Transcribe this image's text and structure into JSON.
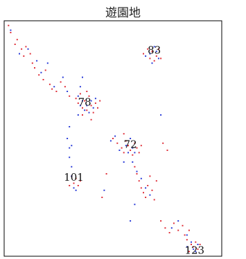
{
  "chart_data": {
    "type": "scatter",
    "title": "遊園地",
    "xlabel": "",
    "ylabel": "",
    "xlim": [
      0,
      100
    ],
    "ylim": [
      0,
      100
    ],
    "grid": false,
    "legend": "none",
    "colors": {
      "series_a": "#e0303a",
      "series_b": "#2a3cd8",
      "frame": "#000000"
    },
    "annotations": [
      {
        "text": "83",
        "x": 69.0,
        "y": 86.0
      },
      {
        "text": "78",
        "x": 37.0,
        "y": 64.0
      },
      {
        "text": "72",
        "x": 58.0,
        "y": 46.0
      },
      {
        "text": "101",
        "x": 32.0,
        "y": 32.0
      },
      {
        "text": "123",
        "x": 87.5,
        "y": 1.0
      }
    ],
    "series": [
      {
        "points": [
          [
            2,
            98
          ],
          [
            3,
            95
          ],
          [
            5,
            90
          ],
          [
            6,
            92
          ],
          [
            8,
            88
          ],
          [
            9,
            85
          ],
          [
            10,
            89
          ],
          [
            12,
            86
          ],
          [
            13,
            82
          ],
          [
            14,
            80
          ],
          [
            16,
            77
          ],
          [
            18,
            75
          ],
          [
            19,
            79
          ],
          [
            21,
            73
          ],
          [
            22,
            71
          ],
          [
            24,
            70
          ],
          [
            26,
            74
          ],
          [
            28,
            72
          ],
          [
            30,
            68
          ],
          [
            33,
            67
          ],
          [
            34,
            65
          ],
          [
            35,
            69
          ],
          [
            36,
            63
          ],
          [
            37,
            66
          ],
          [
            38,
            62
          ],
          [
            39,
            68
          ],
          [
            40,
            64
          ],
          [
            41,
            61
          ],
          [
            42,
            65
          ],
          [
            43,
            63
          ],
          [
            36,
            60
          ],
          [
            38,
            70
          ],
          [
            44,
            66
          ],
          [
            40,
            58
          ],
          [
            64,
            86
          ],
          [
            66,
            88
          ],
          [
            67,
            84
          ],
          [
            68,
            87
          ],
          [
            69,
            83
          ],
          [
            70,
            85
          ],
          [
            71,
            88
          ],
          [
            72,
            84
          ],
          [
            50,
            50
          ],
          [
            52,
            48
          ],
          [
            54,
            46
          ],
          [
            55,
            44
          ],
          [
            56,
            49
          ],
          [
            57,
            47
          ],
          [
            58,
            45
          ],
          [
            59,
            43
          ],
          [
            60,
            48
          ],
          [
            61,
            46
          ],
          [
            62,
            44
          ],
          [
            63,
            47
          ],
          [
            55,
            52
          ],
          [
            60,
            38
          ],
          [
            61,
            35
          ],
          [
            62,
            32
          ],
          [
            63,
            29
          ],
          [
            64,
            27
          ],
          [
            65,
            25
          ],
          [
            66,
            30
          ],
          [
            67,
            34
          ],
          [
            68,
            28
          ],
          [
            69,
            24
          ],
          [
            70,
            32
          ],
          [
            31,
            34
          ],
          [
            32,
            31
          ],
          [
            33,
            33
          ],
          [
            34,
            30
          ],
          [
            35,
            32
          ],
          [
            30,
            30
          ],
          [
            72,
            15
          ],
          [
            74,
            12
          ],
          [
            76,
            10
          ],
          [
            78,
            14
          ],
          [
            80,
            11
          ],
          [
            82,
            13
          ],
          [
            83,
            9
          ],
          [
            84,
            7
          ],
          [
            85,
            11
          ],
          [
            86,
            5
          ],
          [
            87,
            4
          ],
          [
            88,
            6
          ],
          [
            89,
            3
          ],
          [
            90,
            5
          ],
          [
            85,
            2
          ],
          [
            73,
            48
          ],
          [
            75,
            45
          ],
          [
            47,
            35
          ],
          [
            45,
            25
          ]
        ]
      },
      {
        "points": [
          [
            3,
            96
          ],
          [
            7,
            86
          ],
          [
            11,
            88
          ],
          [
            15,
            83
          ],
          [
            17,
            78
          ],
          [
            20,
            82
          ],
          [
            23,
            72
          ],
          [
            27,
            76
          ],
          [
            29,
            70
          ],
          [
            34,
            68
          ],
          [
            35,
            64
          ],
          [
            36,
            66
          ],
          [
            37,
            62
          ],
          [
            38,
            64
          ],
          [
            39,
            61
          ],
          [
            40,
            66
          ],
          [
            41,
            63
          ],
          [
            34,
            60
          ],
          [
            42,
            67
          ],
          [
            35,
            72
          ],
          [
            65,
            85
          ],
          [
            67,
            86
          ],
          [
            68,
            82
          ],
          [
            70,
            87
          ],
          [
            71,
            84
          ],
          [
            69,
            89
          ],
          [
            49,
            49
          ],
          [
            51,
            51
          ],
          [
            53,
            45
          ],
          [
            56,
            47
          ],
          [
            57,
            44
          ],
          [
            59,
            46
          ],
          [
            60,
            44
          ],
          [
            58,
            50
          ],
          [
            29,
            50
          ],
          [
            30,
            46
          ],
          [
            30,
            42
          ],
          [
            31,
            38
          ],
          [
            31,
            34
          ],
          [
            32,
            29
          ],
          [
            33,
            28
          ],
          [
            30,
            55
          ],
          [
            31,
            47
          ],
          [
            59,
            40
          ],
          [
            61,
            36
          ],
          [
            63,
            33
          ],
          [
            65,
            29
          ],
          [
            67,
            26
          ],
          [
            77,
            12
          ],
          [
            80,
            15
          ],
          [
            84,
            9
          ],
          [
            86,
            6
          ],
          [
            87,
            3
          ],
          [
            88,
            2
          ],
          [
            89,
            5
          ],
          [
            84,
            4
          ],
          [
            60,
            22
          ],
          [
            58,
            15
          ],
          [
            46,
            28
          ],
          [
            55,
            40
          ],
          [
            36,
            76
          ],
          [
            72,
            60
          ]
        ]
      }
    ]
  }
}
